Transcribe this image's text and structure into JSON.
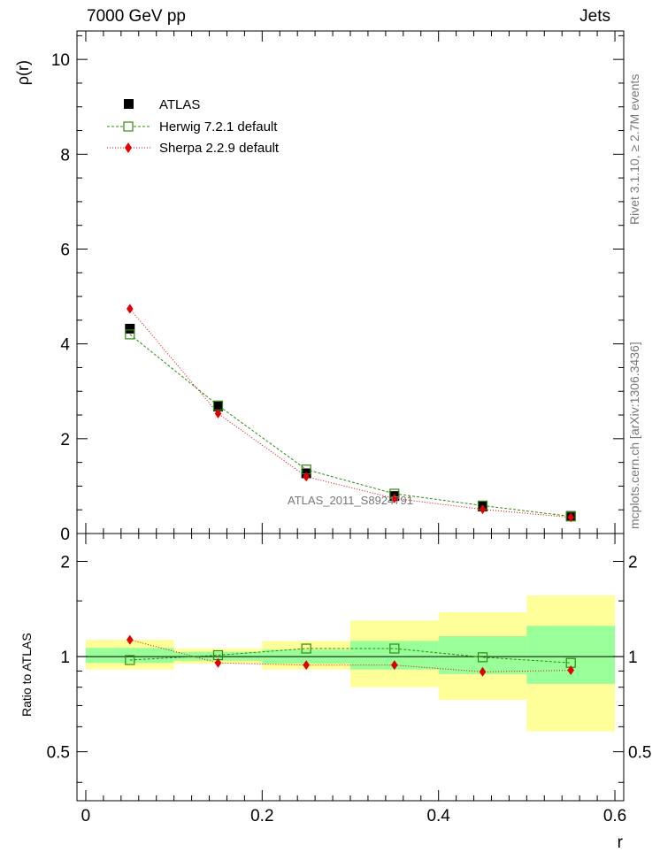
{
  "header": {
    "energy_label": "7000 GeV pp",
    "process_label": "Jets"
  },
  "side_text": {
    "rivet": "Rivet 3.1.10, ≥ 2.7M events",
    "mcplots": "mcplots.cern.ch [arXiv:1306.3436]"
  },
  "watermark": "ATLAS_2011_S8924791",
  "colors": {
    "data": "#000000",
    "herwig": "#2e8b0f",
    "sherpa": "#e00000",
    "band_inner": "#99ff99",
    "band_outer": "#ffff99"
  },
  "chart_data": [
    {
      "type": "scatter",
      "panel": "main",
      "xlabel": "r",
      "ylabel": "ρ(r)",
      "xlim": [
        -0.01,
        0.61
      ],
      "ylim": [
        0,
        10.6
      ],
      "yticks": [
        0,
        2,
        4,
        6,
        8,
        10
      ],
      "ytick_labels": [
        "0",
        "2",
        "4",
        "6",
        "8",
        "10"
      ],
      "legend_position": "top-left",
      "x": [
        0.05,
        0.15,
        0.25,
        0.35,
        0.45,
        0.55
      ],
      "series": [
        {
          "name": "ATLAS",
          "style": "filled-square",
          "values": [
            4.32,
            2.68,
            1.27,
            0.79,
            0.57,
            0.37
          ]
        },
        {
          "name": "Herwig 7.2.1 default",
          "style": "open-square-dashed",
          "values": [
            4.2,
            2.7,
            1.35,
            0.84,
            0.59,
            0.36
          ]
        },
        {
          "name": "Sherpa 2.2.9 default",
          "style": "diamond-dotted",
          "values": [
            4.74,
            2.53,
            1.2,
            0.74,
            0.51,
            0.34
          ]
        }
      ]
    },
    {
      "type": "scatter",
      "panel": "ratio",
      "xlabel": "r",
      "ylabel": "Ratio to ATLAS",
      "xlim": [
        -0.01,
        0.61
      ],
      "ylim": [
        0.35,
        2.45
      ],
      "yticks": [
        0.5,
        1,
        2
      ],
      "ytick_labels": [
        "0.5",
        "1",
        "2"
      ],
      "xticks": [
        0,
        0.2,
        0.4,
        0.6
      ],
      "xtick_labels": [
        "0",
        "0.2",
        "0.4",
        "0.6"
      ],
      "x": [
        0.05,
        0.15,
        0.25,
        0.35,
        0.45,
        0.55
      ],
      "bin_edges": [
        0,
        0.1,
        0.2,
        0.3,
        0.4,
        0.5,
        0.6
      ],
      "band_inner": [
        [
          0.955,
          1.065
        ],
        [
          0.97,
          1.035
        ],
        [
          0.95,
          1.05
        ],
        [
          0.91,
          1.12
        ],
        [
          0.88,
          1.16
        ],
        [
          0.82,
          1.25
        ]
      ],
      "band_outer": [
        [
          0.91,
          1.13
        ],
        [
          0.95,
          1.06
        ],
        [
          0.91,
          1.12
        ],
        [
          0.8,
          1.3
        ],
        [
          0.73,
          1.38
        ],
        [
          0.58,
          1.56
        ]
      ],
      "series": [
        {
          "name": "Herwig 7.2.1 default",
          "values": [
            0.975,
            1.01,
            1.06,
            1.06,
            0.995,
            0.955
          ]
        },
        {
          "name": "Sherpa 2.2.9 default",
          "values": [
            1.13,
            0.955,
            0.94,
            0.94,
            0.895,
            0.905
          ]
        }
      ]
    }
  ]
}
